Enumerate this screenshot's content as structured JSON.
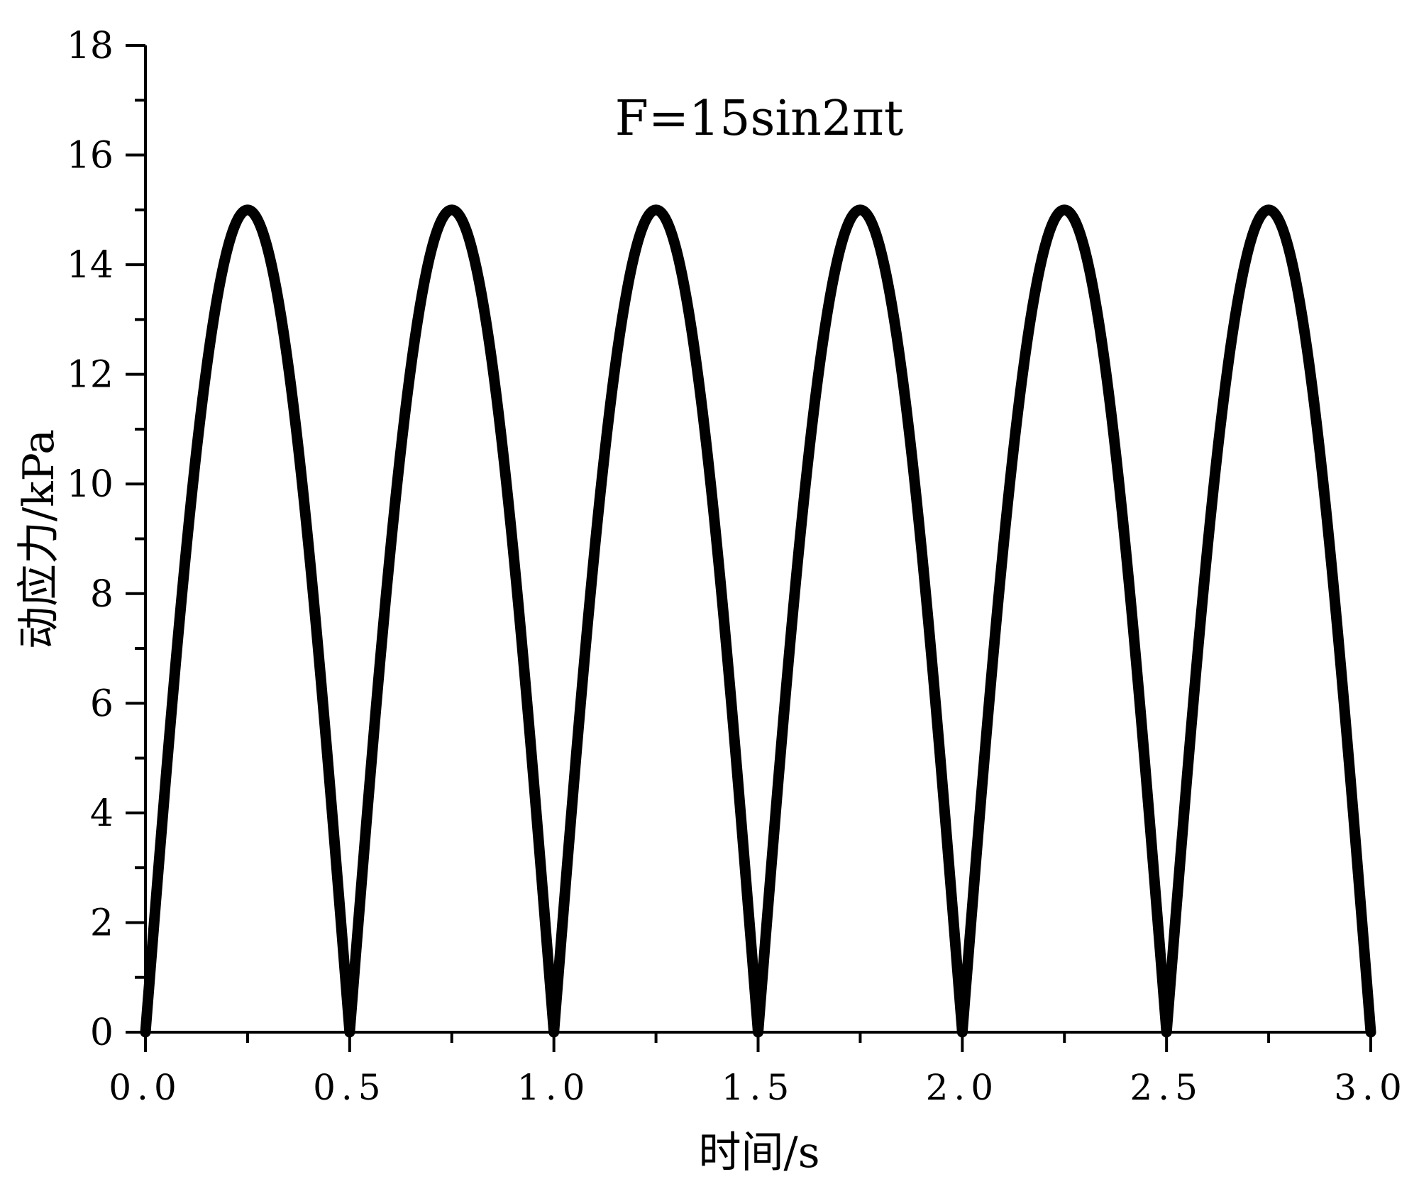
{
  "chart_data": {
    "type": "line",
    "title": "F=15sin2πt",
    "xlabel": "时间/s",
    "ylabel": "动应力/kPa",
    "xlim": [
      0,
      3.0
    ],
    "ylim": [
      0,
      18
    ],
    "xticks": [
      "0.0",
      "0.5",
      "1.0",
      "1.5",
      "2.0",
      "2.5",
      "3.0"
    ],
    "yticks": [
      "0",
      "2",
      "4",
      "6",
      "8",
      "10",
      "12",
      "14",
      "16",
      "18"
    ],
    "grid": false,
    "series": [
      {
        "name": "F",
        "formula": "|15 sin(2πt)|",
        "amplitude": 15,
        "frequency_hz": 1,
        "x": [
          0,
          0.25,
          0.5,
          0.75,
          1.0,
          1.25,
          1.5,
          1.75,
          2.0,
          2.25,
          2.5,
          2.75,
          3.0
        ],
        "y": [
          0,
          15,
          0,
          15,
          0,
          15,
          0,
          15,
          0,
          15,
          0,
          15,
          0
        ],
        "color": "#000000"
      }
    ]
  }
}
